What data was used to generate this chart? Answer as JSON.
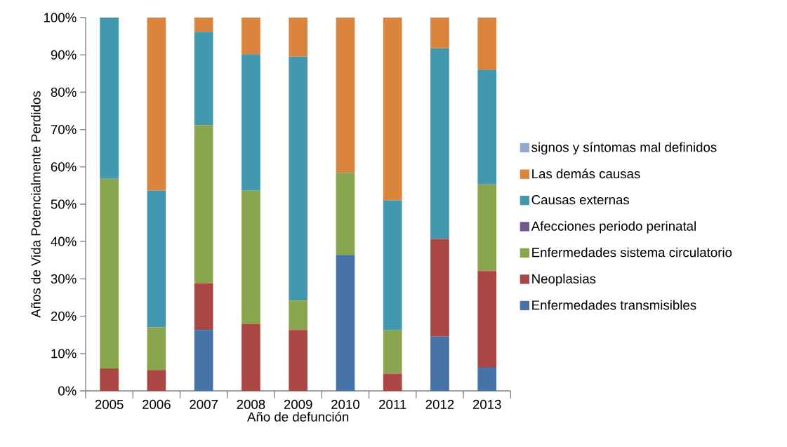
{
  "chart_data": {
    "type": "bar",
    "stacked": true,
    "categories": [
      "2005",
      "2006",
      "2007",
      "2008",
      "2009",
      "2010",
      "2011",
      "2012",
      "2013"
    ],
    "xlabel": "Año de defunción",
    "ylabel": "Años de Vida Potencialmente Perdidos",
    "ylim": [
      0,
      100
    ],
    "yticks": [
      {
        "value": 0,
        "label": "0%"
      },
      {
        "value": 10,
        "label": "10%"
      },
      {
        "value": 20,
        "label": "20%"
      },
      {
        "value": 30,
        "label": "30%"
      },
      {
        "value": 40,
        "label": "40%"
      },
      {
        "value": 50,
        "label": "50%"
      },
      {
        "value": 60,
        "label": "60%"
      },
      {
        "value": 70,
        "label": "70%"
      },
      {
        "value": 80,
        "label": "80%"
      },
      {
        "value": 90,
        "label": "90%"
      },
      {
        "value": 100,
        "label": "100%"
      }
    ],
    "grid": false,
    "legend": "right",
    "series": [
      {
        "name": "Enfermedades transmisibles",
        "color": "#4572a7",
        "values": [
          0,
          0,
          16.3,
          0,
          0,
          36.4,
          0,
          14.5,
          6.2
        ]
      },
      {
        "name": "Neoplasias",
        "color": "#aa4643",
        "values": [
          6.0,
          5.6,
          12.5,
          17.9,
          16.3,
          0,
          4.6,
          26.2,
          25.9
        ]
      },
      {
        "name": "Enfermedades sistema circulatorio",
        "color": "#89a54e",
        "values": [
          50.8,
          11.4,
          42.4,
          35.7,
          7.9,
          22.0,
          11.6,
          0,
          23.2
        ]
      },
      {
        "name": "Afecciones periodo perinatal",
        "color": "#71588f",
        "values": [
          0,
          0,
          0,
          0,
          0,
          0,
          0,
          0,
          0
        ]
      },
      {
        "name": "Causas externas",
        "color": "#4198af",
        "values": [
          43.2,
          36.6,
          25.0,
          36.6,
          65.3,
          0,
          34.8,
          51.1,
          30.6
        ]
      },
      {
        "name": "Las demás causas",
        "color": "#db843d",
        "values": [
          0,
          46.4,
          3.8,
          9.8,
          10.5,
          41.6,
          49.0,
          8.2,
          14.1
        ]
      },
      {
        "name": "signos y síntomas mal definidos",
        "color": "#93a9cf",
        "values": [
          0,
          0,
          0,
          0,
          0,
          0,
          0,
          0,
          0
        ]
      }
    ]
  }
}
